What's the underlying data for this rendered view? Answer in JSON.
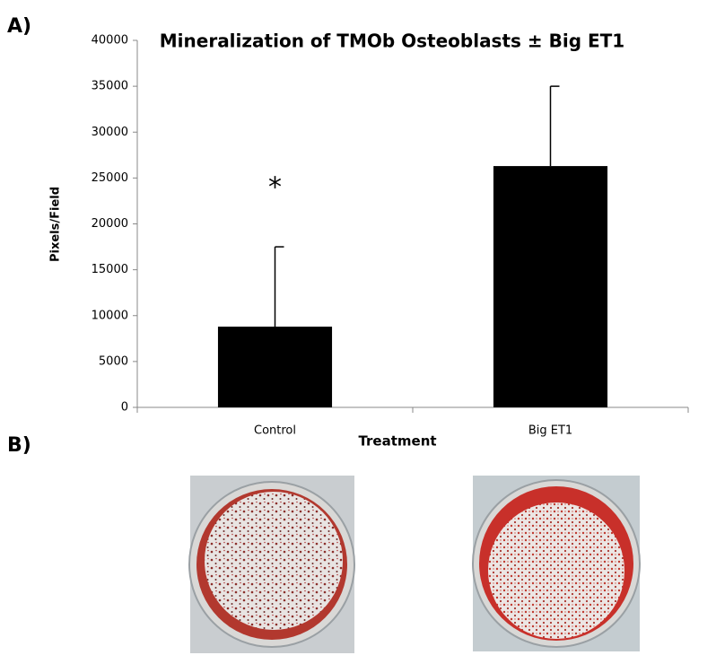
{
  "panel_labels": [
    "A)",
    "B)"
  ],
  "chart_data": {
    "type": "bar",
    "title": "Mineralization of TMOb Osteoblasts ± Big ET1",
    "x_label": "Treatment",
    "y_label": "Pixels/Field",
    "categories": [
      "Control",
      "Big ET1"
    ],
    "values": [
      8800,
      26300
    ],
    "errors": [
      8700,
      8700
    ],
    "color": "#000000",
    "annotation": "*",
    "ylim": [
      0,
      40000
    ],
    "yticks": [
      0,
      5000,
      10000,
      15000,
      20000,
      25000,
      30000,
      35000,
      40000
    ]
  }
}
